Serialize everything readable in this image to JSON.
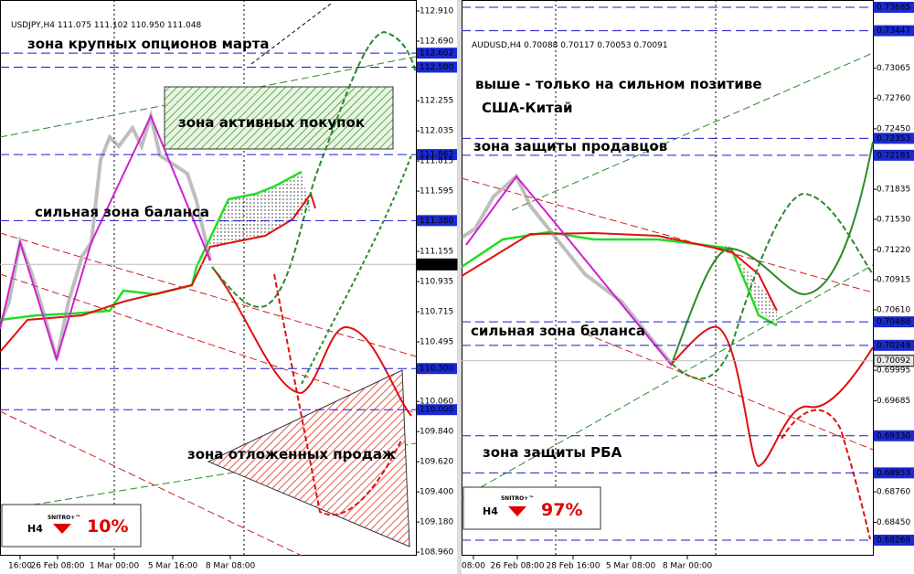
{
  "left_chart": {
    "symbol_line": "USDJPY,H4  111.075 111.102 110.950 111.048",
    "ylim": [
      108.934,
      112.99
    ],
    "price_axis": [
      {
        "value": 112.91,
        "label": "112.910"
      },
      {
        "value": 112.69,
        "label": "112.690"
      },
      {
        "value": 112.602,
        "label": "112.602",
        "level": true
      },
      {
        "value": 112.5,
        "label": "112.500",
        "level": true
      },
      {
        "value": 112.255,
        "label": "112.255"
      },
      {
        "value": 112.035,
        "label": "112.035"
      },
      {
        "value": 111.862,
        "label": "111.862",
        "level": true
      },
      {
        "value": 111.815,
        "label": "111.815"
      },
      {
        "value": 111.595,
        "label": "111.595"
      },
      {
        "value": 111.38,
        "label": "111.380",
        "level": true
      },
      {
        "value": 111.155,
        "label": "111.155"
      },
      {
        "value": 111.06,
        "label": "111.060",
        "current": true
      },
      {
        "value": 110.935,
        "label": "110.935"
      },
      {
        "value": 110.715,
        "label": "110.715"
      },
      {
        "value": 110.495,
        "label": "110.495"
      },
      {
        "value": 110.3,
        "label": "110.300",
        "level": true
      },
      {
        "value": 110.06,
        "label": "110.060"
      },
      {
        "value": 110.0,
        "label": "110.000",
        "level": true
      },
      {
        "value": 109.84,
        "label": "109.840"
      },
      {
        "value": 109.62,
        "label": "109.620"
      },
      {
        "value": 109.4,
        "label": "109.400"
      },
      {
        "value": 109.18,
        "label": "109.180"
      },
      {
        "value": 108.96,
        "label": "108.960"
      }
    ],
    "time_axis": [
      "16:00",
      "26 Feb 08:00",
      "1 Mar 00:00",
      "5 Mar 16:00",
      "8 Mar 08:00"
    ],
    "annotations": [
      "зона крупных опционов марта",
      "зона активных покупок",
      "сильная зона баланса",
      "зона отложенных продаж"
    ],
    "badge": {
      "brand": "5NITRO+™",
      "timeframe": "H4",
      "percent": "10%"
    }
  },
  "right_chart": {
    "symbol_line": "AUDUSD,H4  0.70088 0.70117 0.70053 0.70091",
    "ylim": [
      0.68111,
      0.73759
    ],
    "price_axis": [
      {
        "value": 0.73685,
        "label": "0.73685",
        "level": true
      },
      {
        "value": 0.73447,
        "label": "0.73447",
        "level": true
      },
      {
        "value": 0.73065,
        "label": "0.73065"
      },
      {
        "value": 0.7276,
        "label": "0.72760"
      },
      {
        "value": 0.7245,
        "label": "0.72450"
      },
      {
        "value": 0.72353,
        "label": "0.72353",
        "level": true
      },
      {
        "value": 0.72181,
        "label": "0.72181",
        "level": true
      },
      {
        "value": 0.71835,
        "label": "0.71835"
      },
      {
        "value": 0.7153,
        "label": "0.71530"
      },
      {
        "value": 0.7122,
        "label": "0.71220"
      },
      {
        "value": 0.70915,
        "label": "0.70915"
      },
      {
        "value": 0.7061,
        "label": "0.70610"
      },
      {
        "value": 0.70488,
        "label": "0.70488",
        "level": true
      },
      {
        "value": 0.70249,
        "label": "0.70249",
        "level": true
      },
      {
        "value": 0.70092,
        "label": "0.70092",
        "current": true
      },
      {
        "value": 0.69995,
        "label": "0.69995"
      },
      {
        "value": 0.69685,
        "label": "0.69685"
      },
      {
        "value": 0.6933,
        "label": "0.69330",
        "level": true
      },
      {
        "value": 0.68953,
        "label": "0.68953",
        "level": true
      },
      {
        "value": 0.6876,
        "label": "0.68760"
      },
      {
        "value": 0.6845,
        "label": "0.68450"
      },
      {
        "value": 0.68269,
        "label": "0.68269",
        "level": true
      }
    ],
    "time_axis": [
      "08:00",
      "26 Feb 08:00",
      "28 Feb 16:00",
      "5 Mar 08:00",
      "8 Mar 00:00"
    ],
    "annotations": [
      "выше - только на сильном позитиве",
      "США-Китай",
      "зона защиты продавцов",
      "сильная зона баланса",
      "зона защиты РБА"
    ],
    "badge": {
      "brand": "5NITRO+™",
      "timeframe": "H4",
      "percent": "97%"
    }
  }
}
